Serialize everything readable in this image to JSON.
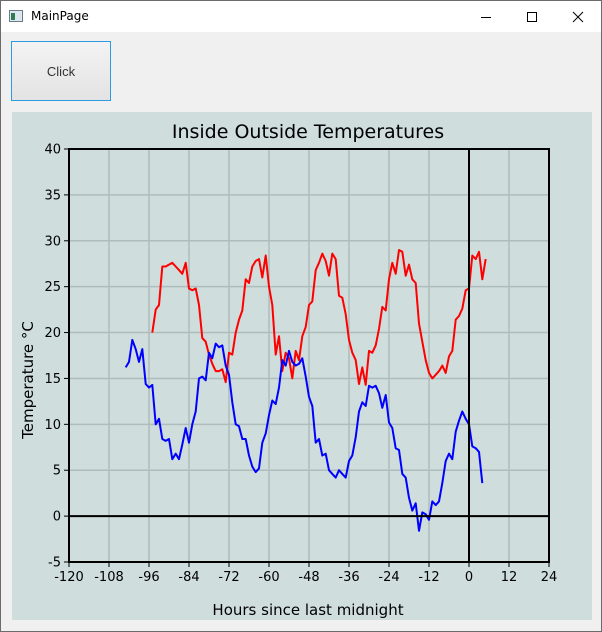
{
  "window": {
    "title": "MainPage",
    "min_icon": "minimize-icon",
    "max_icon": "maximize-icon",
    "close_icon": "close-icon"
  },
  "toolbar": {
    "click_label": "Click"
  },
  "colors": {
    "chart_background": "#cfdddd",
    "grid": "#aebcbc",
    "axis": "#000000",
    "inside_series": "#ff0000",
    "outside_series": "#0000ff"
  },
  "chart_data": {
    "type": "line",
    "title": "Inside Outside Temperatures",
    "xlabel": "Hours since last midnight",
    "ylabel": "Temperature °C",
    "xlim": [
      -120,
      24
    ],
    "ylim": [
      -5,
      40
    ],
    "x_ticks": [
      "-120",
      "-108",
      "-96",
      "-84",
      "-72",
      "-60",
      "-48",
      "-36",
      "-24",
      "-12",
      "0",
      "12",
      "24"
    ],
    "y_ticks": [
      "-5",
      "0",
      "5",
      "10",
      "15",
      "20",
      "25",
      "30",
      "35",
      "40"
    ],
    "grid": true,
    "series": [
      {
        "color": "#ff0000",
        "points": [
          [
            -95,
            20
          ],
          [
            -94,
            22.5
          ],
          [
            -93,
            23
          ],
          [
            -92,
            27.2
          ],
          [
            -91,
            27.2
          ],
          [
            -90,
            27.4
          ],
          [
            -89,
            27.6
          ],
          [
            -88,
            27.2
          ],
          [
            -87,
            26.8
          ],
          [
            -86,
            26.4
          ],
          [
            -85,
            27.6
          ],
          [
            -84,
            24.8
          ],
          [
            -83,
            24.6
          ],
          [
            -82,
            24.8
          ],
          [
            -81,
            23
          ],
          [
            -80,
            19.4
          ],
          [
            -79,
            19
          ],
          [
            -78,
            17.6
          ],
          [
            -77,
            16.6
          ],
          [
            -76,
            15.8
          ],
          [
            -75,
            15.8
          ],
          [
            -74,
            16
          ],
          [
            -73,
            14.6
          ],
          [
            -72,
            17.8
          ],
          [
            -71,
            17.6
          ],
          [
            -70,
            20
          ],
          [
            -69,
            21.4
          ],
          [
            -68,
            22.4
          ],
          [
            -67,
            25.8
          ],
          [
            -66,
            25.4
          ],
          [
            -65,
            27.2
          ],
          [
            -64,
            27.8
          ],
          [
            -63,
            28
          ],
          [
            -62,
            26
          ],
          [
            -61,
            28.4
          ],
          [
            -60,
            25
          ],
          [
            -59,
            23
          ],
          [
            -58,
            17.6
          ],
          [
            -57,
            19.6
          ],
          [
            -56,
            15.8
          ],
          [
            -55,
            17.8
          ],
          [
            -54,
            17.2
          ],
          [
            -53,
            15
          ],
          [
            -52,
            18
          ],
          [
            -51,
            17
          ],
          [
            -50,
            19.6
          ],
          [
            -49,
            20.6
          ],
          [
            -48,
            23
          ],
          [
            -47,
            23.4
          ],
          [
            -46,
            26.8
          ],
          [
            -45,
            27.6
          ],
          [
            -44,
            28.6
          ],
          [
            -43,
            27.8
          ],
          [
            -42,
            26.2
          ],
          [
            -41,
            28.6
          ],
          [
            -40,
            28
          ],
          [
            -39,
            24
          ],
          [
            -38,
            23.8
          ],
          [
            -37,
            22
          ],
          [
            -36,
            19.2
          ],
          [
            -35,
            17.8
          ],
          [
            -34,
            17
          ],
          [
            -33,
            14.4
          ],
          [
            -32,
            16.2
          ],
          [
            -31,
            14.3
          ],
          [
            -30,
            18
          ],
          [
            -29,
            17.8
          ],
          [
            -28,
            18.6
          ],
          [
            -27,
            20.4
          ],
          [
            -26,
            22.8
          ],
          [
            -25,
            22.4
          ],
          [
            -24,
            25.8
          ],
          [
            -23,
            27.6
          ],
          [
            -22,
            26.4
          ],
          [
            -21,
            29
          ],
          [
            -20,
            28.8
          ],
          [
            -19,
            26.2
          ],
          [
            -18,
            27.4
          ],
          [
            -17,
            25.8
          ],
          [
            -16,
            25.4
          ],
          [
            -15,
            21
          ],
          [
            -14,
            19
          ],
          [
            -13,
            17
          ],
          [
            -12,
            15.6
          ],
          [
            -11,
            15
          ],
          [
            -10,
            15.4
          ],
          [
            -9,
            15.8
          ],
          [
            -8,
            16.4
          ],
          [
            -7,
            15.6
          ],
          [
            -6,
            17.4
          ],
          [
            -5,
            18
          ],
          [
            -4,
            21.4
          ],
          [
            -3,
            21.8
          ],
          [
            -2,
            22.6
          ],
          [
            -1,
            24.6
          ],
          [
            0,
            24.8
          ],
          [
            1,
            28.4
          ],
          [
            2,
            28
          ],
          [
            3,
            28.8
          ],
          [
            4,
            25.8
          ],
          [
            5,
            28
          ]
        ]
      },
      {
        "color": "#0000ff",
        "points": [
          [
            -103,
            16.2
          ],
          [
            -102,
            16.8
          ],
          [
            -101,
            19.2
          ],
          [
            -100,
            18.2
          ],
          [
            -99,
            16.8
          ],
          [
            -98,
            18.2
          ],
          [
            -97,
            14.4
          ],
          [
            -96,
            14
          ],
          [
            -95,
            14.3
          ],
          [
            -94,
            10
          ],
          [
            -93,
            10.6
          ],
          [
            -92,
            8.4
          ],
          [
            -91,
            8.2
          ],
          [
            -90,
            8.4
          ],
          [
            -89,
            6.2
          ],
          [
            -88,
            6.8
          ],
          [
            -87,
            6.2
          ],
          [
            -86,
            7.8
          ],
          [
            -85,
            9.6
          ],
          [
            -84,
            8
          ],
          [
            -83,
            10
          ],
          [
            -82,
            11.4
          ],
          [
            -81,
            15
          ],
          [
            -80,
            15.2
          ],
          [
            -79,
            14.8
          ],
          [
            -78,
            17.8
          ],
          [
            -77,
            17.2
          ],
          [
            -76,
            18.8
          ],
          [
            -75,
            18.4
          ],
          [
            -74,
            18.6
          ],
          [
            -73,
            16.4
          ],
          [
            -72,
            15.4
          ],
          [
            -71,
            12.4
          ],
          [
            -70,
            10
          ],
          [
            -69,
            9.8
          ],
          [
            -68,
            8.4
          ],
          [
            -67,
            8.4
          ],
          [
            -66,
            6.6
          ],
          [
            -65,
            5.4
          ],
          [
            -64,
            4.8
          ],
          [
            -63,
            5.2
          ],
          [
            -62,
            8
          ],
          [
            -61,
            9
          ],
          [
            -60,
            11
          ],
          [
            -59,
            12.6
          ],
          [
            -58,
            12.2
          ],
          [
            -57,
            14
          ],
          [
            -56,
            17
          ],
          [
            -55,
            16.4
          ],
          [
            -54,
            18
          ],
          [
            -53,
            16.8
          ],
          [
            -52,
            16.4
          ],
          [
            -51,
            16.6
          ],
          [
            -50,
            17.2
          ],
          [
            -49,
            15.2
          ],
          [
            -48,
            13
          ],
          [
            -47,
            12
          ],
          [
            -46,
            8
          ],
          [
            -45,
            8.4
          ],
          [
            -44,
            6.6
          ],
          [
            -43,
            6.8
          ],
          [
            -42,
            5
          ],
          [
            -41,
            4.6
          ],
          [
            -40,
            4.2
          ],
          [
            -39,
            5
          ],
          [
            -38,
            4.6
          ],
          [
            -37,
            4.2
          ],
          [
            -36,
            6
          ],
          [
            -35,
            6.6
          ],
          [
            -34,
            8.6
          ],
          [
            -33,
            11.4
          ],
          [
            -32,
            12.4
          ],
          [
            -31,
            12
          ],
          [
            -30,
            14.2
          ],
          [
            -29,
            14
          ],
          [
            -28,
            14.2
          ],
          [
            -27,
            13.4
          ],
          [
            -26,
            11.8
          ],
          [
            -25,
            13.2
          ],
          [
            -24,
            10.2
          ],
          [
            -23,
            9.6
          ],
          [
            -22,
            7.4
          ],
          [
            -21,
            7.2
          ],
          [
            -20,
            4.6
          ],
          [
            -19,
            4.2
          ],
          [
            -18,
            2
          ],
          [
            -17,
            0.6
          ],
          [
            -16,
            1.4
          ],
          [
            -15,
            -1.6
          ],
          [
            -14,
            0.4
          ],
          [
            -13,
            0.2
          ],
          [
            -12,
            -0.4
          ],
          [
            -11,
            1.6
          ],
          [
            -10,
            1.2
          ],
          [
            -9,
            1.6
          ],
          [
            -8,
            3.6
          ],
          [
            -7,
            6
          ],
          [
            -6,
            6.8
          ],
          [
            -5,
            6.2
          ],
          [
            -4,
            9.2
          ],
          [
            -3,
            10.4
          ],
          [
            -2,
            11.4
          ],
          [
            -1,
            10.6
          ],
          [
            0,
            10
          ],
          [
            1,
            7.6
          ],
          [
            2,
            7.4
          ],
          [
            3,
            7
          ],
          [
            4,
            3.6
          ]
        ]
      }
    ]
  }
}
